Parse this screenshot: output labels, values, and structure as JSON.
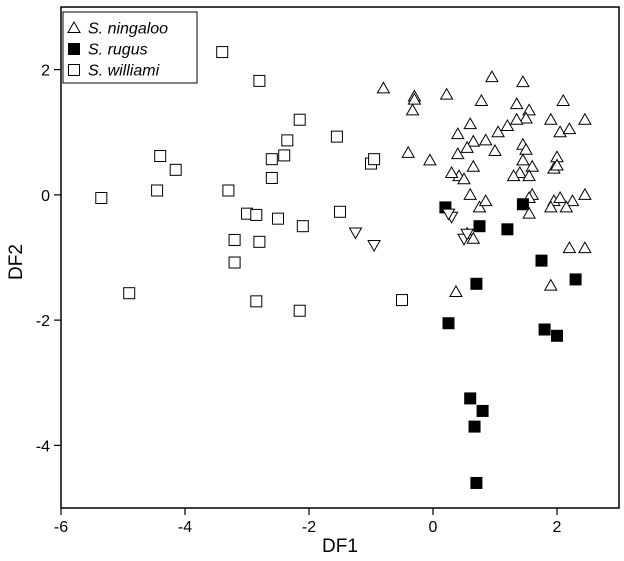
{
  "chart_data": {
    "type": "scatter",
    "xlabel": "DF1",
    "ylabel": "DF2",
    "xlim": [
      -6,
      3
    ],
    "ylim": [
      -5,
      3
    ],
    "x_ticks": [
      "-6",
      "-4",
      "-2",
      "0",
      "2"
    ],
    "y_ticks": [
      "2",
      "0",
      "-2",
      "-4"
    ],
    "x_tick_values": [
      -6,
      -4,
      -2,
      0,
      2
    ],
    "y_tick_values": [
      2,
      0,
      -2,
      -4
    ],
    "grid": false,
    "legend_position": "top-left",
    "series": [
      {
        "name": "S. ningaloo",
        "marker": "triangle-up-open",
        "points": [
          [
            -0.3,
            1.57
          ],
          [
            -0.3,
            1.52
          ],
          [
            -0.33,
            1.35
          ],
          [
            -0.8,
            1.7
          ],
          [
            0.22,
            1.6
          ],
          [
            0.78,
            1.5
          ],
          [
            0.95,
            1.88
          ],
          [
            1.45,
            1.8
          ],
          [
            1.35,
            1.45
          ],
          [
            1.55,
            1.35
          ],
          [
            1.5,
            1.22
          ],
          [
            1.35,
            1.2
          ],
          [
            1.2,
            1.1
          ],
          [
            1.05,
            1.0
          ],
          [
            0.6,
            1.13
          ],
          [
            0.4,
            0.97
          ],
          [
            0.65,
            0.85
          ],
          [
            0.85,
            0.87
          ],
          [
            1.0,
            0.7
          ],
          [
            1.45,
            0.8
          ],
          [
            1.5,
            0.72
          ],
          [
            1.45,
            0.55
          ],
          [
            1.6,
            0.45
          ],
          [
            1.4,
            0.35
          ],
          [
            1.3,
            0.3
          ],
          [
            1.55,
            0.3
          ],
          [
            0.55,
            0.75
          ],
          [
            0.4,
            0.65
          ],
          [
            0.65,
            0.45
          ],
          [
            0.42,
            0.3
          ],
          [
            0.5,
            0.25
          ],
          [
            0.3,
            0.35
          ],
          [
            -0.05,
            0.55
          ],
          [
            -0.4,
            0.67
          ],
          [
            0.6,
            0.0
          ],
          [
            0.75,
            -0.2
          ],
          [
            0.85,
            -0.1
          ],
          [
            1.6,
            0.0
          ],
          [
            1.55,
            -0.05
          ],
          [
            1.55,
            -0.3
          ],
          [
            1.95,
            -0.1
          ],
          [
            2.0,
            0.6
          ],
          [
            1.95,
            0.42
          ],
          [
            2.0,
            0.47
          ],
          [
            1.9,
            1.2
          ],
          [
            2.05,
            1.0
          ],
          [
            2.2,
            1.05
          ],
          [
            2.1,
            1.5
          ],
          [
            2.45,
            1.2
          ],
          [
            2.05,
            -0.05
          ],
          [
            2.25,
            -0.1
          ],
          [
            2.45,
            0.0
          ],
          [
            1.9,
            -0.2
          ],
          [
            2.15,
            -0.2
          ],
          [
            2.2,
            -0.85
          ],
          [
            2.45,
            -0.85
          ],
          [
            1.9,
            -1.45
          ],
          [
            0.37,
            -1.55
          ],
          [
            0.55,
            -0.62
          ],
          [
            0.65,
            -0.7
          ]
        ]
      },
      {
        "name": "S. rugus",
        "marker": "square-filled",
        "points": [
          [
            0.2,
            -0.2
          ],
          [
            1.45,
            -0.15
          ],
          [
            0.75,
            -0.5
          ],
          [
            1.2,
            -0.55
          ],
          [
            1.75,
            -1.05
          ],
          [
            2.3,
            -1.35
          ],
          [
            0.7,
            -1.42
          ],
          [
            0.25,
            -2.05
          ],
          [
            1.8,
            -2.15
          ],
          [
            2.0,
            -2.25
          ],
          [
            0.6,
            -3.25
          ],
          [
            0.8,
            -3.45
          ],
          [
            0.67,
            -3.7
          ],
          [
            0.7,
            -4.6
          ]
        ]
      },
      {
        "name": "S. williami",
        "marker": "square-open",
        "points": [
          [
            -3.4,
            2.28
          ],
          [
            -2.8,
            1.82
          ],
          [
            -2.15,
            1.2
          ],
          [
            -2.35,
            0.87
          ],
          [
            -1.55,
            0.93
          ],
          [
            -1.0,
            0.5
          ],
          [
            -0.95,
            0.57
          ],
          [
            -4.4,
            0.62
          ],
          [
            -4.15,
            0.4
          ],
          [
            -2.6,
            0.57
          ],
          [
            -2.4,
            0.63
          ],
          [
            -2.6,
            0.27
          ],
          [
            -4.45,
            0.07
          ],
          [
            -3.3,
            0.07
          ],
          [
            -5.35,
            -0.05
          ],
          [
            -3.0,
            -0.3
          ],
          [
            -2.85,
            -0.32
          ],
          [
            -2.5,
            -0.38
          ],
          [
            -1.5,
            -0.27
          ],
          [
            -2.1,
            -0.5
          ],
          [
            -3.2,
            -0.72
          ],
          [
            -2.8,
            -0.75
          ],
          [
            -3.2,
            -1.08
          ],
          [
            -4.9,
            -1.57
          ],
          [
            -2.85,
            -1.7
          ],
          [
            -2.15,
            -1.85
          ],
          [
            -0.5,
            -1.68
          ]
        ]
      },
      {
        "marker": "triangle-down-open",
        "points": [
          [
            0.3,
            -0.35
          ],
          [
            -1.25,
            -0.6
          ],
          [
            -0.95,
            -0.8
          ],
          [
            0.5,
            -0.7
          ],
          [
            0.55,
            -0.62
          ],
          [
            0.25,
            -0.3
          ]
        ]
      }
    ]
  }
}
